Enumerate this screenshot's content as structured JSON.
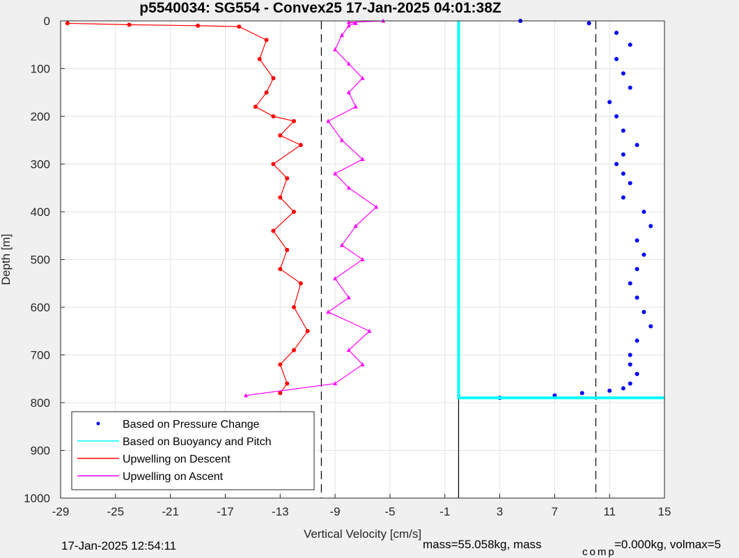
{
  "chart_data": {
    "type": "scatter",
    "title": "p5540034: SG554 - Convex25 17-Jan-2025 04:01:38Z",
    "xlabel": "Vertical Velocity [cm/s]",
    "ylabel": "Depth [m]",
    "xlim": [
      -29,
      15
    ],
    "ylim": [
      0,
      1000
    ],
    "y_reversed": true,
    "grid": true,
    "legend_position": "bottom-left",
    "xticks": [
      -29,
      -25,
      -21,
      -17,
      -13,
      -9,
      -5,
      -1,
      3,
      7,
      11,
      15
    ],
    "yticks": [
      0,
      100,
      200,
      300,
      400,
      500,
      600,
      700,
      800,
      900,
      1000
    ],
    "dashed_lines_x": [
      -10,
      10
    ],
    "zero_line_x": 0,
    "max_depth_m": 790,
    "legend": [
      {
        "label": "Based on Pressure Change",
        "color": "#0000ff",
        "style": "dot"
      },
      {
        "label": "Based on Buoyancy and Pitch",
        "color": "#00ffff",
        "style": "line"
      },
      {
        "label": "Upwelling on Descent",
        "color": "#ff0000",
        "style": "line"
      },
      {
        "label": "Upwelling on Ascent",
        "color": "#ff00ff",
        "style": "line"
      }
    ],
    "series": [
      {
        "name": "Based on Pressure Change",
        "color": "#0000ff",
        "x": [
          4.5,
          9.5,
          11.5,
          12.5,
          11.5,
          12.0,
          12.5,
          11.0,
          11.5,
          12.0,
          13.0,
          12.0,
          11.5,
          12.0,
          12.5,
          12.0,
          13.5,
          14.0,
          13.0,
          13.5,
          13.0,
          12.5,
          13.0,
          13.5,
          14.0,
          13.0,
          12.5,
          12.5,
          13.0,
          12.5,
          12.0,
          11.0,
          9.0,
          7.0,
          3.0
        ],
        "y": [
          0,
          5,
          25,
          50,
          80,
          110,
          140,
          170,
          200,
          230,
          260,
          280,
          300,
          320,
          340,
          370,
          400,
          430,
          460,
          490,
          520,
          550,
          580,
          610,
          640,
          670,
          700,
          720,
          740,
          760,
          770,
          775,
          780,
          785,
          790
        ]
      },
      {
        "name": "Based on Buoyancy and Pitch",
        "color": "#00ffff",
        "x": [
          0,
          0,
          0,
          0,
          5.8,
          13.0,
          15.0
        ],
        "y": [
          0,
          400,
          780,
          790,
          790,
          790,
          790
        ]
      },
      {
        "name": "Upwelling on Descent",
        "color": "#ff0000",
        "x": [
          -28.5,
          -24,
          -19,
          -16,
          -14.0,
          -14.5,
          -13.5,
          -14.0,
          -14.8,
          -13.5,
          -12.0,
          -13.0,
          -11.5,
          -13.5,
          -12.5,
          -13.0,
          -12.0,
          -13.5,
          -12.5,
          -13.0,
          -11.5,
          -12.0,
          -11.0,
          -12.0,
          -13.0,
          -12.5,
          -13.0
        ],
        "y": [
          5,
          8,
          10,
          12,
          40,
          80,
          120,
          150,
          180,
          200,
          210,
          240,
          260,
          300,
          330,
          370,
          400,
          440,
          480,
          520,
          550,
          600,
          650,
          690,
          720,
          760,
          780
        ]
      },
      {
        "name": "Upwelling on Ascent",
        "color": "#ff00ff",
        "x": [
          -15.5,
          -9.0,
          -7.0,
          -8.0,
          -6.5,
          -9.5,
          -8.0,
          -9.0,
          -7.0,
          -8.5,
          -7.5,
          -6.0,
          -8.0,
          -9.0,
          -7.0,
          -8.5,
          -9.5,
          -7.5,
          -8.0,
          -7.0,
          -8.0,
          -9.0,
          -8.5,
          -8.0,
          -7.5,
          -8.0,
          -5.5
        ],
        "y": [
          785,
          760,
          720,
          690,
          650,
          610,
          580,
          540,
          500,
          470,
          430,
          390,
          350,
          320,
          290,
          250,
          210,
          180,
          150,
          120,
          90,
          60,
          30,
          10,
          5,
          3,
          0
        ]
      }
    ]
  },
  "footer": {
    "timestamp": "17-Jan-2025 12:54:11",
    "mass_text": "mass=55.058kg, mass",
    "comp_sub": "comp",
    "mass_comp_text": "=0.000kg, volmax=5"
  }
}
